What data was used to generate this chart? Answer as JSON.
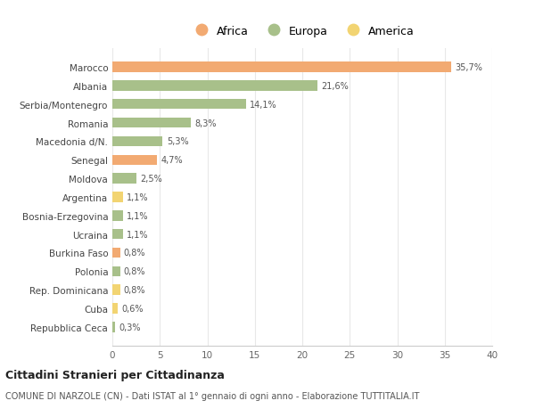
{
  "countries": [
    "Marocco",
    "Albania",
    "Serbia/Montenegro",
    "Romania",
    "Macedonia d/N.",
    "Senegal",
    "Moldova",
    "Argentina",
    "Bosnia-Erzegovina",
    "Ucraina",
    "Burkina Faso",
    "Polonia",
    "Rep. Dominicana",
    "Cuba",
    "Repubblica Ceca"
  ],
  "values": [
    35.7,
    21.6,
    14.1,
    8.3,
    5.3,
    4.7,
    2.5,
    1.1,
    1.1,
    1.1,
    0.8,
    0.8,
    0.8,
    0.6,
    0.3
  ],
  "labels": [
    "35,7%",
    "21,6%",
    "14,1%",
    "8,3%",
    "5,3%",
    "4,7%",
    "2,5%",
    "1,1%",
    "1,1%",
    "1,1%",
    "0,8%",
    "0,8%",
    "0,8%",
    "0,6%",
    "0,3%"
  ],
  "categories": [
    "Africa",
    "Europa",
    "Europa",
    "Europa",
    "Europa",
    "Africa",
    "Europa",
    "America",
    "Europa",
    "Europa",
    "Africa",
    "Europa",
    "America",
    "America",
    "Europa"
  ],
  "colors": {
    "Africa": "#F2AA72",
    "Europa": "#A8C08A",
    "America": "#F2D472"
  },
  "title": "Cittadini Stranieri per Cittadinanza",
  "subtitle": "COMUNE DI NARZOLE (CN) - Dati ISTAT al 1° gennaio di ogni anno - Elaborazione TUTTITALIA.IT",
  "xlim": [
    0,
    40
  ],
  "xticks": [
    0,
    5,
    10,
    15,
    20,
    25,
    30,
    35,
    40
  ],
  "bg_color": "#ffffff",
  "grid_color": "#e8e8e8",
  "bar_height": 0.55
}
